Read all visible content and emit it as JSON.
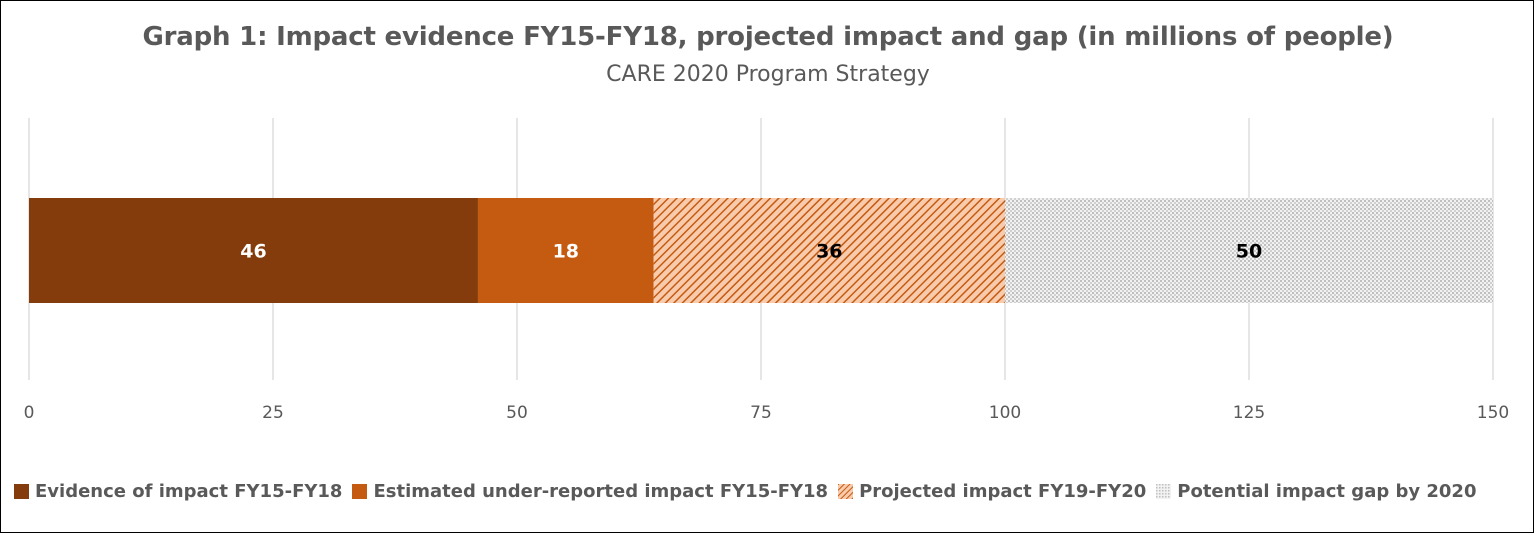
{
  "chart_data": {
    "type": "bar",
    "orientation": "horizontal",
    "stacked": true,
    "title": "Graph 1: Impact evidence FY15-FY18, projected impact and gap (in millions of people)",
    "subtitle": "CARE 2020 Program Strategy",
    "xlabel": "",
    "ylabel": "",
    "xlim": [
      0,
      150
    ],
    "x_ticks": [
      "0",
      "25",
      "50",
      "75",
      "100",
      "125",
      "150"
    ],
    "x_tick_values": [
      0,
      25,
      50,
      75,
      100,
      125,
      150
    ],
    "grid": "vertical",
    "legend_position": "bottom",
    "categories": [
      ""
    ],
    "series": [
      {
        "name": "Evidence of impact FY15-FY18",
        "values": [
          46
        ],
        "label": "46",
        "color": "#843C0C",
        "pattern": "solid",
        "label_color": "#ffffff"
      },
      {
        "name": "Estimated under-reported impact FY15-FY18",
        "values": [
          18
        ],
        "label": "18",
        "color": "#C55A11",
        "pattern": "solid",
        "label_color": "#ffffff"
      },
      {
        "name": "Projected impact FY19-FY20",
        "values": [
          36
        ],
        "label": "36",
        "color": "#C55A11",
        "pattern": "diagonal-hatch",
        "label_color": "#000000"
      },
      {
        "name": "Potential impact gap by 2020",
        "values": [
          50
        ],
        "label": "50",
        "color": "#BFBFBF",
        "pattern": "dotted-grid",
        "label_color": "#000000"
      }
    ]
  },
  "colors": {
    "text": "#595959",
    "gridline": "#D9D9D9",
    "frame": "#000000"
  }
}
